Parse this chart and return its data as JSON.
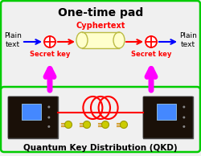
{
  "title_top": "One-time pad",
  "title_bottom": "Quantum Key Distribution (QKD)",
  "cyphertext_label": "Cyphertext",
  "secret_key_left": "Secret key",
  "secret_key_right": "Secret key",
  "plain_text_left": "Plain\ntext",
  "plain_text_right": "Plain\ntext",
  "outer_box_color": "#00cc00",
  "inner_box_color": "#00cc00",
  "bg_color": "#f0f0f0",
  "arrow_blue": "#0000ff",
  "arrow_red": "#ff0000",
  "arrow_magenta": "#ff00ff",
  "text_red": "#ff0000",
  "text_black": "#000000",
  "cylinder_fill": "#ffffcc",
  "cylinder_edge": "#bbbb44",
  "photon_color": "#cccc00",
  "photon_line": "#cc8800",
  "coil_color": "#ff0000",
  "device_color": "#2a1a0a",
  "device_edge": "#555555",
  "screen_color": "#4488ff",
  "sep_line_color": "#00cc00"
}
